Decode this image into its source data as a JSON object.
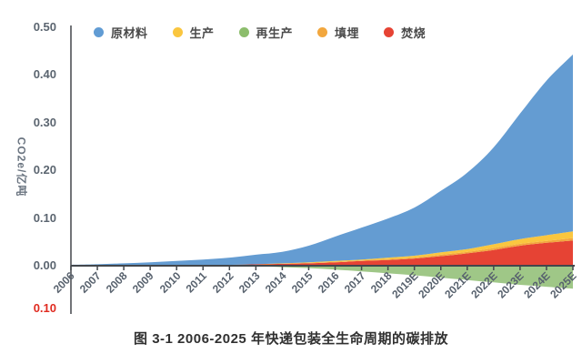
{
  "caption": "图 3-1 2006-2025 年快递包装全生命周期的碳排放",
  "legend": {
    "items": [
      {
        "label": "原材料",
        "color": "#619CD4"
      },
      {
        "label": "生产",
        "color": "#FAC63F"
      },
      {
        "label": "再生产",
        "color": "#8CBD6C"
      },
      {
        "label": "填埋",
        "color": "#F2A73E"
      },
      {
        "label": "焚烧",
        "color": "#E64334"
      }
    ]
  },
  "y_axis": {
    "title": "CO2e/亿吨",
    "ticks": [
      {
        "label": "0.50",
        "value": 0.5
      },
      {
        "label": "0.40",
        "value": 0.4
      },
      {
        "label": "0.30",
        "value": 0.3
      },
      {
        "label": "0.20",
        "value": 0.2
      },
      {
        "label": "0.10",
        "value": 0.1
      },
      {
        "label": "0.00",
        "value": 0.0
      }
    ],
    "negative_tick": {
      "label": "0.10",
      "value": -0.1,
      "color": "#E02B20"
    }
  },
  "chart_data": {
    "type": "area",
    "stacked": true,
    "title": "",
    "xlabel": "",
    "ylabel": "CO2e/亿吨",
    "ylim": [
      -0.1,
      0.5
    ],
    "grid": false,
    "legend_position": "top",
    "categories": [
      "2006",
      "2007",
      "2008",
      "2009",
      "2010",
      "2011",
      "2012",
      "2013",
      "2014",
      "2015",
      "2016",
      "2017",
      "2018",
      "2019E",
      "2020E",
      "2021E",
      "2022E",
      "2023E",
      "2024E",
      "2025E"
    ],
    "series": [
      {
        "name": "原材料",
        "color": "#649CD2",
        "values": [
          0.002,
          0.003,
          0.005,
          0.006,
          0.009,
          0.012,
          0.015,
          0.02,
          0.024,
          0.035,
          0.051,
          0.067,
          0.082,
          0.101,
          0.129,
          0.16,
          0.203,
          0.263,
          0.324,
          0.371
        ]
      },
      {
        "name": "生产",
        "color": "#FAC63F",
        "values": [
          0,
          0,
          0,
          0,
          0,
          0,
          0,
          0.0,
          0.001,
          0.001,
          0.002,
          0.002,
          0.003,
          0.004,
          0.005,
          0.006,
          0.008,
          0.01,
          0.012,
          0.014
        ]
      },
      {
        "name": "再生产",
        "color": "#9AC481",
        "values": [
          0,
          0,
          0,
          0,
          0,
          0,
          -0.001,
          -0.001,
          -0.003,
          -0.005,
          -0.008,
          -0.012,
          -0.016,
          -0.02,
          -0.025,
          -0.03,
          -0.035,
          -0.04,
          -0.044,
          -0.048
        ]
      },
      {
        "name": "填埋",
        "color": "#F2A73E",
        "values": [
          0,
          0,
          0,
          0,
          0,
          0,
          0,
          0,
          0.0,
          0.001,
          0.001,
          0.001,
          0.002,
          0.002,
          0.003,
          0.003,
          0.004,
          0.004,
          0.004,
          0.005
        ]
      },
      {
        "name": "焚烧",
        "color": "#E64334",
        "values": [
          0.0,
          0.0,
          0.0,
          0.001,
          0.001,
          0.001,
          0.002,
          0.003,
          0.004,
          0.005,
          0.007,
          0.01,
          0.012,
          0.015,
          0.02,
          0.026,
          0.033,
          0.042,
          0.048,
          0.053
        ]
      }
    ],
    "stack_order_bottom_to_top": [
      "焚烧",
      "填埋",
      "生产",
      "原材料"
    ],
    "negative_series": "再生产"
  }
}
